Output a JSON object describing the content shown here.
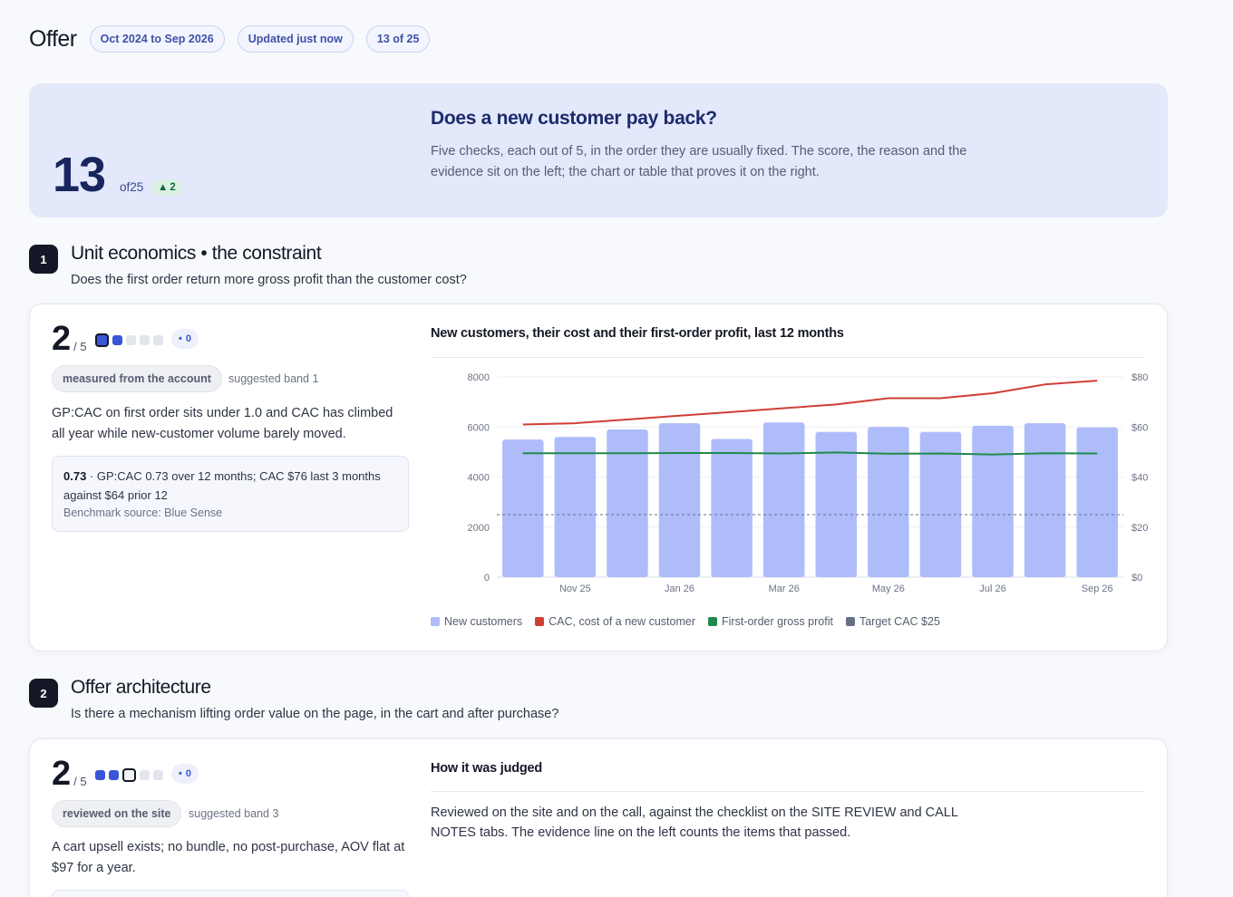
{
  "header": {
    "title": "Offer",
    "pills": [
      "Oct 2024 to Sep 2026",
      "Updated just now",
      "13 of 25"
    ]
  },
  "hero": {
    "score": "13",
    "score_of": "of25",
    "delta": "2",
    "heading": "Does a new customer pay back?",
    "text": "Five checks, each out of 5, in the order they are usually fixed. The score, the reason and the evidence sit on the left; the chart or table that proves it on the right."
  },
  "sections": [
    {
      "number": "1",
      "title": "Unit economics • the constraint",
      "subtitle": "Does the first order return more gross profit than the customer cost?",
      "score": "2",
      "score_denominator": "/ 5",
      "dots": [
        "on-current",
        "on",
        "off",
        "off",
        "off"
      ],
      "change": "0",
      "tag": "measured from the account",
      "band": "suggested band 1",
      "description": "GP:CAC on first order sits under 1.0 and CAC has climbed all year while new-customer volume barely moved.",
      "evidence": {
        "value": "0.73",
        "text": "GP:CAC 0.73 over 12 months; CAC $76 last 3 months against $64 prior 12",
        "source": "Benchmark source: Blue Sense"
      }
    },
    {
      "number": "2",
      "title": "Offer architecture",
      "subtitle": "Is there a mechanism lifting order value on the page, in the cart and after purchase?",
      "score": "2",
      "score_denominator": "/ 5",
      "dots": [
        "on",
        "on",
        "off-current",
        "off",
        "off"
      ],
      "change": "0",
      "tag": "reviewed on the site",
      "band": "suggested band 3",
      "description": "A cart upsell exists; no bundle, no post-purchase, AOV flat at $97 for a year.",
      "panel_title": "How it was judged",
      "panel_text": "Reviewed on the site and on the call, against the checklist on the SITE REVIEW and CALL NOTES tabs. The evidence line on the left counts the items that passed."
    }
  ],
  "chart_data": {
    "type": "bar",
    "title": "New customers, their cost and their first-order profit, last 12 months",
    "categories": [
      "Oct 25",
      "Nov 25",
      "Dec 25",
      "Jan 26",
      "Feb 26",
      "Mar 26",
      "Apr 26",
      "May 26",
      "Jun 26",
      "Jul 26",
      "Aug 26",
      "Sep 26"
    ],
    "x_tick_labels": [
      "Nov 25",
      "Jan 26",
      "Mar 26",
      "May 26",
      "Jul 26",
      "Sep 26"
    ],
    "y_left": {
      "ylim": [
        0,
        8000
      ],
      "ticks": [
        "0",
        "2000",
        "4000",
        "6000",
        "8000"
      ]
    },
    "y_right": {
      "ylim": [
        0,
        80
      ],
      "ticks": [
        "$0",
        "$20",
        "$40",
        "$60",
        "$80"
      ]
    },
    "series": [
      {
        "name": "New customers",
        "type": "bar",
        "axis": "left",
        "color": "#aebcfa",
        "values": [
          5500,
          5600,
          5900,
          6150,
          5520,
          6180,
          5800,
          6000,
          5800,
          6050,
          6150,
          5980
        ]
      },
      {
        "name": "CAC, cost of a new customer",
        "type": "line",
        "axis": "right",
        "color": "#cf3f37",
        "values": [
          61,
          61.5,
          63,
          64.5,
          66,
          67.5,
          69,
          71.5,
          71.5,
          73.5,
          77,
          78.5
        ]
      },
      {
        "name": "First-order gross profit",
        "type": "line",
        "axis": "right",
        "color": "#1f8a4c",
        "values": [
          49.5,
          49.5,
          49.5,
          49.6,
          49.6,
          49.4,
          49.8,
          49.3,
          49.4,
          49.0,
          49.5,
          49.4
        ]
      },
      {
        "name": "Target CAC $25",
        "type": "dashed-line",
        "axis": "right",
        "color": "#667085",
        "values": [
          25,
          25,
          25,
          25,
          25,
          25,
          25,
          25,
          25,
          25,
          25,
          25
        ]
      }
    ],
    "legend_position": "bottom-left",
    "grid": "horizontal"
  }
}
